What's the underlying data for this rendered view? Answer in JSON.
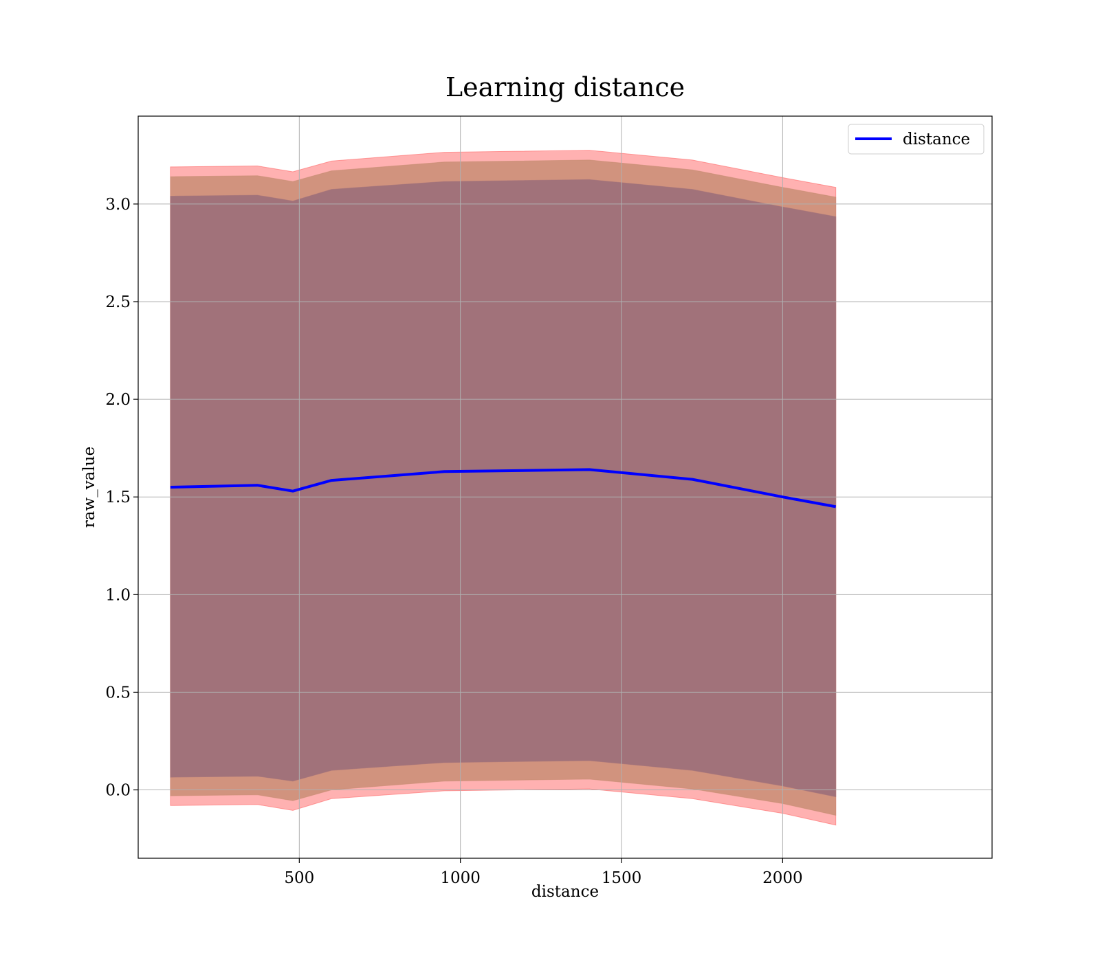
{
  "chart_data": {
    "type": "area",
    "title": "Learning distance",
    "xlabel": "distance",
    "ylabel": "raw_value",
    "xlim": [
      0,
      2650
    ],
    "ylim": [
      -0.35,
      3.45
    ],
    "x_ticks": [
      500,
      1000,
      1500,
      2000
    ],
    "x_tick_labels": [
      "500",
      "1000",
      "1500",
      "2000"
    ],
    "y_ticks": [
      0.0,
      0.5,
      1.0,
      1.5,
      2.0,
      2.5,
      3.0
    ],
    "y_tick_labels": [
      "0.0",
      "0.5",
      "1.0",
      "1.5",
      "2.0",
      "2.5",
      "3.0"
    ],
    "grid": true,
    "legend_position": "top-right",
    "x": [
      100,
      370,
      480,
      600,
      950,
      1400,
      1720,
      2000,
      2165
    ],
    "series": [
      {
        "name": "distance",
        "color": "#0000ff",
        "values": [
          1.55,
          1.56,
          1.53,
          1.585,
          1.63,
          1.64,
          1.59,
          1.5,
          1.45
        ]
      }
    ],
    "bands": [
      {
        "color": "#ff6464",
        "opacity": 0.5,
        "lower": [
          -0.08,
          -0.075,
          -0.105,
          -0.045,
          -0.005,
          0.005,
          -0.045,
          -0.12,
          -0.18
        ],
        "upper": [
          3.19,
          3.195,
          3.165,
          3.22,
          3.265,
          3.275,
          3.225,
          3.135,
          3.085
        ]
      },
      {
        "color": "#c68c72",
        "opacity": 0.8,
        "lower": [
          -0.03,
          -0.025,
          -0.055,
          0.0,
          0.045,
          0.055,
          0.005,
          -0.07,
          -0.13
        ],
        "upper": [
          3.14,
          3.145,
          3.115,
          3.17,
          3.215,
          3.225,
          3.175,
          3.085,
          3.035
        ]
      },
      {
        "color": "#a1727a",
        "opacity": 1.0,
        "lower": [
          0.065,
          0.07,
          0.045,
          0.1,
          0.14,
          0.15,
          0.1,
          0.02,
          -0.035
        ],
        "upper": [
          3.04,
          3.045,
          3.015,
          3.075,
          3.115,
          3.125,
          3.075,
          2.985,
          2.935
        ]
      }
    ]
  }
}
